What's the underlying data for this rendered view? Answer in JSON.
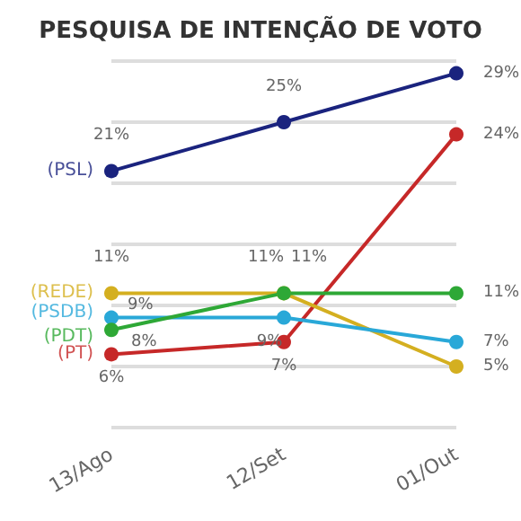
{
  "chart_data": {
    "type": "line",
    "title": "PESQUISA DE INTENÇÃO DE VOTO",
    "categories": [
      "13/Ago",
      "12/Set",
      "01/Out"
    ],
    "series": [
      {
        "name": "(PSL)",
        "color": "#1a237e",
        "values": [
          21,
          25,
          29
        ],
        "value_labels": [
          "21%",
          "25%",
          "29%"
        ]
      },
      {
        "name": "(PT)",
        "color": "#c62828",
        "values": [
          6,
          7,
          24
        ],
        "value_labels": [
          "6%",
          "7%",
          "24%"
        ]
      },
      {
        "name": "(REDE)",
        "color": "#d4af20",
        "values": [
          11,
          11,
          5
        ],
        "value_labels": [
          "11%",
          "11%",
          "5%"
        ]
      },
      {
        "name": "(PSDB)",
        "color": "#29a8d8",
        "values": [
          9,
          9,
          7
        ],
        "value_labels": [
          "9%",
          "9%",
          "7%"
        ]
      },
      {
        "name": "(PDT)",
        "color": "#2ea836",
        "values": [
          8,
          11,
          11
        ],
        "value_labels": [
          "8%",
          "11%",
          "11%"
        ]
      }
    ],
    "grid": "y",
    "tick_labels": "x",
    "marker": "circle",
    "line_style": "solid",
    "legend": false
  }
}
